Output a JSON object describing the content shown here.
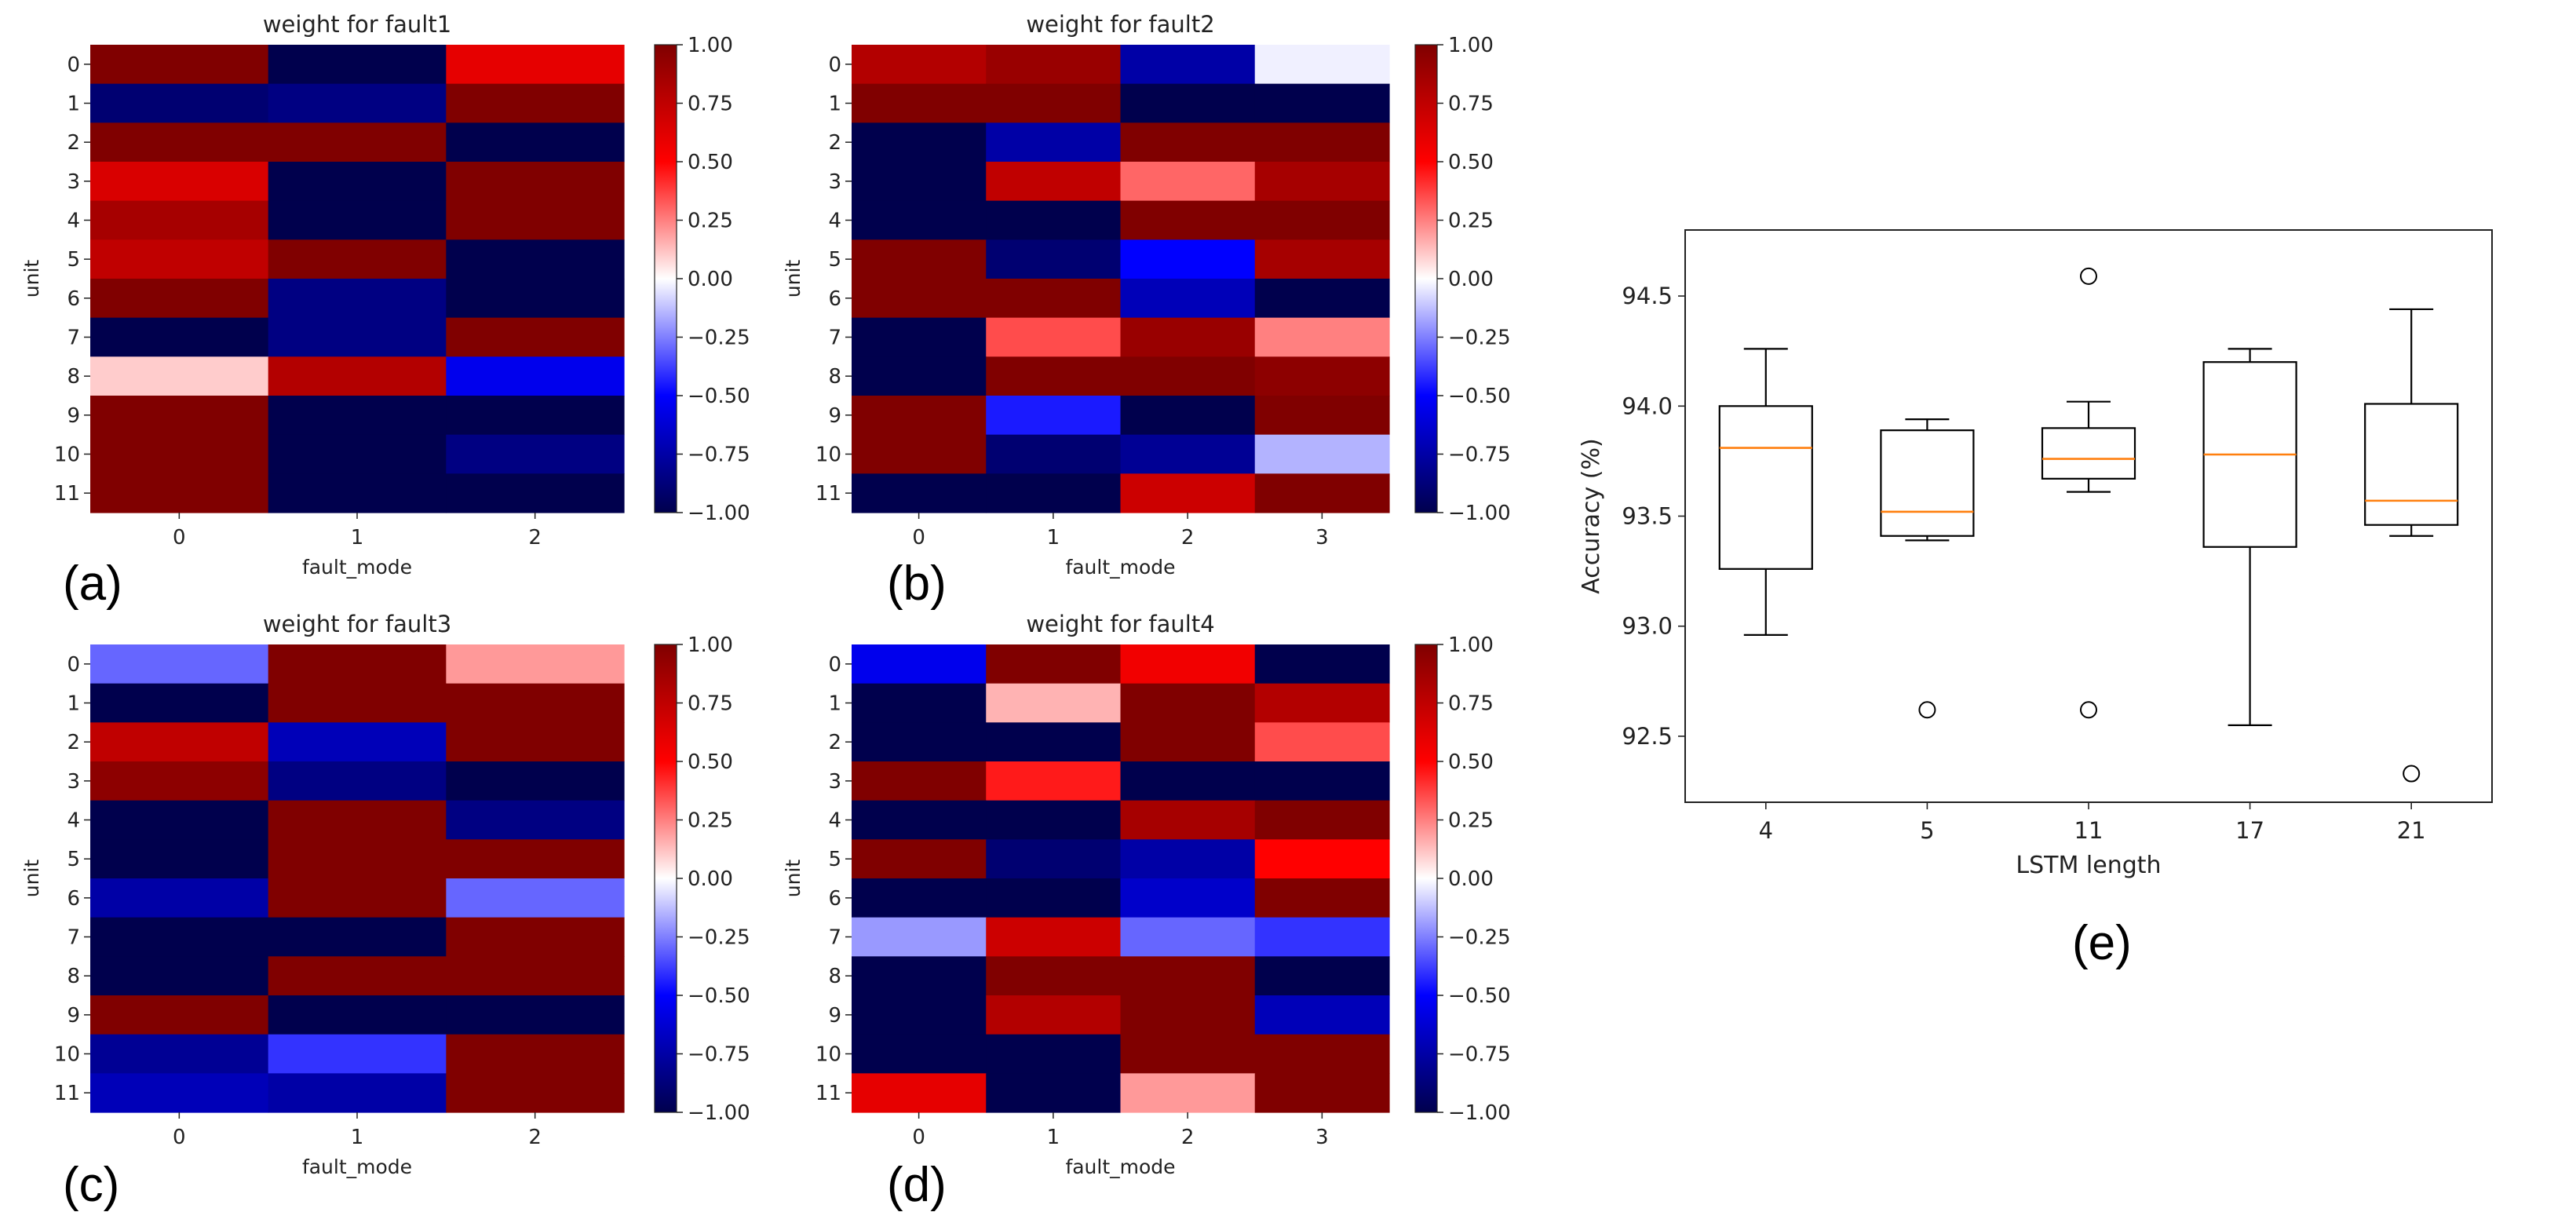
{
  "chart_data": [
    {
      "id": "a",
      "type": "heatmap",
      "panel_label": "(a)",
      "title": "weight for fault1",
      "xlabel": "fault_mode",
      "ylabel": "unit",
      "x_ticks": [
        "0",
        "1",
        "2"
      ],
      "y_ticks": [
        "0",
        "1",
        "2",
        "3",
        "4",
        "5",
        "6",
        "7",
        "8",
        "9",
        "10",
        "11"
      ],
      "colorbar_ticks": [
        "1.00",
        "0.75",
        "0.50",
        "0.25",
        "0.00",
        "−0.25",
        "−0.50",
        "−0.75",
        "−1.00"
      ],
      "vmin": -1,
      "vmax": 1,
      "values": [
        [
          1.0,
          -1.0,
          0.6
        ],
        [
          -0.9,
          -0.85,
          1.0
        ],
        [
          1.0,
          1.0,
          -1.0
        ],
        [
          0.65,
          -1.0,
          1.0
        ],
        [
          0.85,
          -1.0,
          1.0
        ],
        [
          0.75,
          1.0,
          -1.0
        ],
        [
          1.0,
          -0.85,
          -1.0
        ],
        [
          -1.0,
          -0.85,
          1.0
        ],
        [
          0.1,
          0.8,
          -0.55
        ],
        [
          1.0,
          -1.0,
          -1.0
        ],
        [
          1.0,
          -1.0,
          -0.85
        ],
        [
          1.0,
          -1.0,
          -1.0
        ]
      ]
    },
    {
      "id": "b",
      "type": "heatmap",
      "panel_label": "(b)",
      "title": "weight for fault2",
      "xlabel": "fault_mode",
      "ylabel": "unit",
      "x_ticks": [
        "0",
        "1",
        "2",
        "3"
      ],
      "y_ticks": [
        "0",
        "1",
        "2",
        "3",
        "4",
        "5",
        "6",
        "7",
        "8",
        "9",
        "10",
        "11"
      ],
      "colorbar_ticks": [
        "1.00",
        "0.75",
        "0.50",
        "0.25",
        "0.00",
        "−0.25",
        "−0.50",
        "−0.75",
        "−1.00"
      ],
      "vmin": -1,
      "vmax": 1,
      "values": [
        [
          0.8,
          0.9,
          -0.75,
          -0.03
        ],
        [
          1.0,
          1.0,
          -1.0,
          -1.0
        ],
        [
          -1.0,
          -0.75,
          1.0,
          1.0
        ],
        [
          -1.0,
          0.75,
          0.3,
          0.85
        ],
        [
          -1.0,
          -1.0,
          1.0,
          1.0
        ],
        [
          1.0,
          -0.9,
          -0.5,
          0.85
        ],
        [
          1.0,
          1.0,
          -0.7,
          -1.0
        ],
        [
          -1.0,
          0.35,
          0.9,
          0.25
        ],
        [
          -1.0,
          1.0,
          1.0,
          0.95
        ],
        [
          1.0,
          -0.45,
          -1.0,
          1.0
        ],
        [
          1.0,
          -0.9,
          -0.8,
          -0.15
        ],
        [
          -1.0,
          -1.0,
          0.7,
          1.0
        ]
      ]
    },
    {
      "id": "c",
      "type": "heatmap",
      "panel_label": "(c)",
      "title": "weight for fault3",
      "xlabel": "fault_mode",
      "ylabel": "unit",
      "x_ticks": [
        "0",
        "1",
        "2"
      ],
      "y_ticks": [
        "0",
        "1",
        "2",
        "3",
        "4",
        "5",
        "6",
        "7",
        "8",
        "9",
        "10",
        "11"
      ],
      "colorbar_ticks": [
        "1.00",
        "0.75",
        "0.50",
        "0.25",
        "0.00",
        "−0.25",
        "−0.50",
        "−0.75",
        "−1.00"
      ],
      "vmin": -1,
      "vmax": 1,
      "values": [
        [
          -0.3,
          1.0,
          0.2
        ],
        [
          -1.0,
          1.0,
          1.0
        ],
        [
          0.75,
          -0.7,
          1.0
        ],
        [
          0.95,
          -0.85,
          -1.0
        ],
        [
          -1.0,
          1.0,
          -0.85
        ],
        [
          -1.0,
          1.0,
          1.0
        ],
        [
          -0.75,
          1.0,
          -0.3
        ],
        [
          -1.0,
          -1.0,
          1.0
        ],
        [
          -1.0,
          1.0,
          1.0
        ],
        [
          1.0,
          -1.0,
          -1.0
        ],
        [
          -0.8,
          -0.4,
          1.0
        ],
        [
          -0.7,
          -0.75,
          1.0
        ]
      ]
    },
    {
      "id": "d",
      "type": "heatmap",
      "panel_label": "(d)",
      "title": "weight for fault4",
      "xlabel": "fault_mode",
      "ylabel": "unit",
      "x_ticks": [
        "0",
        "1",
        "2",
        "3"
      ],
      "y_ticks": [
        "0",
        "1",
        "2",
        "3",
        "4",
        "5",
        "6",
        "7",
        "8",
        "9",
        "10",
        "11"
      ],
      "colorbar_ticks": [
        "1.00",
        "0.75",
        "0.50",
        "0.25",
        "0.00",
        "−0.25",
        "−0.50",
        "−0.75",
        "−1.00"
      ],
      "vmin": -1,
      "vmax": 1,
      "values": [
        [
          -0.55,
          1.0,
          0.55,
          -1.0
        ],
        [
          -1.0,
          0.15,
          1.0,
          0.8
        ],
        [
          -1.0,
          -1.0,
          1.0,
          0.35
        ],
        [
          1.0,
          0.45,
          -1.0,
          -1.0
        ],
        [
          -1.0,
          -1.0,
          0.85,
          1.0
        ],
        [
          1.0,
          -0.9,
          -0.75,
          0.5
        ],
        [
          -1.0,
          -1.0,
          -0.65,
          1.0
        ],
        [
          -0.2,
          0.7,
          -0.3,
          -0.4
        ],
        [
          -1.0,
          1.0,
          1.0,
          -1.0
        ],
        [
          -1.0,
          0.8,
          1.0,
          -0.7
        ],
        [
          -1.0,
          -1.0,
          1.0,
          1.0
        ],
        [
          0.6,
          -1.0,
          0.2,
          1.0
        ]
      ]
    },
    {
      "id": "e",
      "type": "box",
      "panel_label": "(e)",
      "title": "",
      "xlabel": "LSTM length",
      "ylabel": "Accuracy (%)",
      "ylim": [
        92.2,
        94.8
      ],
      "y_ticks": [
        92.5,
        93.0,
        93.5,
        94.0,
        94.5
      ],
      "y_tick_labels": [
        "92.5",
        "93.0",
        "93.5",
        "94.0",
        "94.5"
      ],
      "categories": [
        "4",
        "5",
        "11",
        "17",
        "21"
      ],
      "boxes": [
        {
          "whisker_low": 92.96,
          "q1": 93.26,
          "median": 93.81,
          "q3": 94.0,
          "whisker_high": 94.26,
          "outliers": []
        },
        {
          "whisker_low": 93.39,
          "q1": 93.41,
          "median": 93.52,
          "q3": 93.89,
          "whisker_high": 93.94,
          "outliers": [
            92.62
          ]
        },
        {
          "whisker_low": 93.61,
          "q1": 93.67,
          "median": 93.76,
          "q3": 93.9,
          "whisker_high": 94.02,
          "outliers": [
            94.59,
            92.62
          ]
        },
        {
          "whisker_low": 92.55,
          "q1": 93.36,
          "median": 93.78,
          "q3": 94.2,
          "whisker_high": 94.26,
          "outliers": []
        },
        {
          "whisker_low": 93.41,
          "q1": 93.46,
          "median": 93.57,
          "q3": 94.01,
          "whisker_high": 94.44,
          "outliers": [
            92.33
          ]
        }
      ],
      "colors": {
        "median": "#ff7f0e",
        "box": "#000000"
      }
    }
  ]
}
